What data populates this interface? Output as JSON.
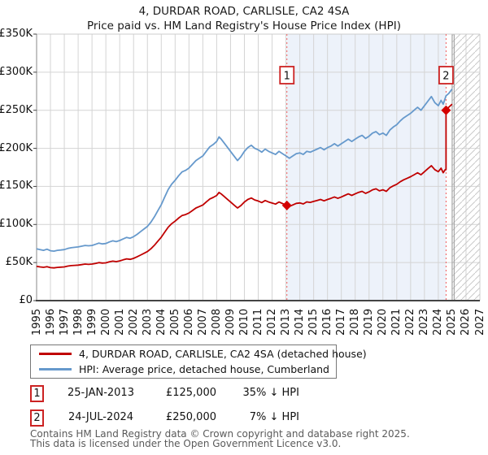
{
  "header": {
    "title": "4, DURDAR ROAD, CARLISLE, CA2 4SA",
    "subtitle": "Price paid vs. HM Land Registry's House Price Index (HPI)"
  },
  "chart_data": {
    "type": "line",
    "x_axis": {
      "min": 1995,
      "max": 2027,
      "tick_years": [
        1995,
        1996,
        1997,
        1998,
        1999,
        2000,
        2001,
        2002,
        2003,
        2004,
        2005,
        2006,
        2007,
        2008,
        2009,
        2010,
        2011,
        2012,
        2013,
        2014,
        2015,
        2016,
        2017,
        2018,
        2019,
        2020,
        2021,
        2022,
        2023,
        2024,
        2025,
        2026,
        2027
      ]
    },
    "y_axis": {
      "min_k": 0,
      "max_k": 350,
      "tick_step_k": 50,
      "tick_values_k": [
        0,
        50,
        100,
        150,
        200,
        250,
        300,
        350
      ],
      "tick_labels": [
        "£0",
        "£50K",
        "£100K",
        "£150K",
        "£200K",
        "£250K",
        "£300K",
        "£350K"
      ]
    },
    "grid": true,
    "band": {
      "from_year": 2013.07,
      "to_year": 2024.56,
      "color": "#edf2fa"
    },
    "future": {
      "from_year": 2025.0,
      "hatch_color": "#c9c9c9",
      "edge_color": "#a8a8a8"
    },
    "colors": {
      "grid": "#d4d4d4",
      "spine_light": "#cccccc",
      "spine_left": "#888888",
      "spine_bottom": "#444444",
      "dashed_line": "#f25c5c",
      "marker": "#d40000",
      "box_border": "#cc2222"
    },
    "series": [
      {
        "name": "HPI: Average price, detached house, Cumberland",
        "key": "hpi",
        "color": "#6699cc",
        "units": "GBP_thousands",
        "points": [
          [
            1995.0,
            68
          ],
          [
            1995.25,
            67
          ],
          [
            1995.5,
            66
          ],
          [
            1995.75,
            67.5
          ],
          [
            1996.0,
            65.5
          ],
          [
            1996.25,
            65
          ],
          [
            1996.5,
            66
          ],
          [
            1996.75,
            66.5
          ],
          [
            1997.0,
            67
          ],
          [
            1997.25,
            68.5
          ],
          [
            1997.5,
            69.5
          ],
          [
            1997.75,
            70
          ],
          [
            1998.0,
            70.5
          ],
          [
            1998.25,
            71.5
          ],
          [
            1998.5,
            72.5
          ],
          [
            1998.75,
            72
          ],
          [
            1999.0,
            72.5
          ],
          [
            1999.25,
            74
          ],
          [
            1999.5,
            75.5
          ],
          [
            1999.75,
            74.5
          ],
          [
            2000.0,
            75
          ],
          [
            2000.25,
            77
          ],
          [
            2000.5,
            78.5
          ],
          [
            2000.75,
            77.5
          ],
          [
            2001.0,
            79
          ],
          [
            2001.25,
            81
          ],
          [
            2001.5,
            83
          ],
          [
            2001.75,
            82
          ],
          [
            2002.0,
            84
          ],
          [
            2002.25,
            87
          ],
          [
            2002.5,
            90.5
          ],
          [
            2002.75,
            94
          ],
          [
            2003.0,
            97.5
          ],
          [
            2003.25,
            103
          ],
          [
            2003.5,
            110
          ],
          [
            2003.75,
            118
          ],
          [
            2004.0,
            126
          ],
          [
            2004.25,
            136
          ],
          [
            2004.5,
            146
          ],
          [
            2004.75,
            153
          ],
          [
            2005.0,
            158
          ],
          [
            2005.25,
            164
          ],
          [
            2005.5,
            169
          ],
          [
            2005.75,
            171
          ],
          [
            2006.0,
            174
          ],
          [
            2006.25,
            179
          ],
          [
            2006.5,
            184
          ],
          [
            2006.75,
            187
          ],
          [
            2007.0,
            190
          ],
          [
            2007.25,
            196
          ],
          [
            2007.5,
            202
          ],
          [
            2007.75,
            205
          ],
          [
            2008.0,
            209
          ],
          [
            2008.17,
            215
          ],
          [
            2008.33,
            212
          ],
          [
            2008.5,
            208
          ],
          [
            2008.75,
            202
          ],
          [
            2009.0,
            196
          ],
          [
            2009.25,
            190
          ],
          [
            2009.5,
            184
          ],
          [
            2009.75,
            189
          ],
          [
            2010.0,
            196
          ],
          [
            2010.25,
            201
          ],
          [
            2010.5,
            204
          ],
          [
            2010.75,
            200
          ],
          [
            2011.0,
            198
          ],
          [
            2011.25,
            195
          ],
          [
            2011.5,
            199
          ],
          [
            2011.75,
            196
          ],
          [
            2012.0,
            194
          ],
          [
            2012.25,
            192
          ],
          [
            2012.5,
            196
          ],
          [
            2012.75,
            193
          ],
          [
            2013.0,
            190
          ],
          [
            2013.25,
            187
          ],
          [
            2013.5,
            190
          ],
          [
            2013.75,
            193
          ],
          [
            2014.0,
            194
          ],
          [
            2014.25,
            192
          ],
          [
            2014.5,
            196
          ],
          [
            2014.75,
            195
          ],
          [
            2015.0,
            197
          ],
          [
            2015.25,
            199
          ],
          [
            2015.5,
            201
          ],
          [
            2015.75,
            198
          ],
          [
            2016.0,
            201
          ],
          [
            2016.25,
            203
          ],
          [
            2016.5,
            206
          ],
          [
            2016.75,
            203
          ],
          [
            2017.0,
            206
          ],
          [
            2017.25,
            209
          ],
          [
            2017.5,
            212
          ],
          [
            2017.75,
            209
          ],
          [
            2018.0,
            212
          ],
          [
            2018.25,
            215
          ],
          [
            2018.5,
            217
          ],
          [
            2018.75,
            213
          ],
          [
            2019.0,
            216
          ],
          [
            2019.25,
            220
          ],
          [
            2019.5,
            222
          ],
          [
            2019.75,
            218
          ],
          [
            2020.0,
            220
          ],
          [
            2020.25,
            217
          ],
          [
            2020.5,
            224
          ],
          [
            2020.75,
            228
          ],
          [
            2021.0,
            231
          ],
          [
            2021.25,
            236
          ],
          [
            2021.5,
            240
          ],
          [
            2021.75,
            243
          ],
          [
            2022.0,
            246
          ],
          [
            2022.25,
            250
          ],
          [
            2022.5,
            254
          ],
          [
            2022.75,
            250
          ],
          [
            2023.0,
            256
          ],
          [
            2023.25,
            262
          ],
          [
            2023.5,
            268
          ],
          [
            2023.75,
            260
          ],
          [
            2024.0,
            256
          ],
          [
            2024.2,
            263
          ],
          [
            2024.35,
            258
          ],
          [
            2024.56,
            269
          ],
          [
            2024.75,
            272
          ],
          [
            2025.0,
            278
          ]
        ]
      },
      {
        "name": "4, DURDAR ROAD, CARLISLE, CA2 4SA (detached house)",
        "key": "price_paid",
        "color": "#c00000",
        "units": "GBP_thousands",
        "points": [
          [
            1995.0,
            45
          ],
          [
            1995.25,
            44.3
          ],
          [
            1995.5,
            43.7
          ],
          [
            1995.75,
            44.6
          ],
          [
            1996.0,
            43.3
          ],
          [
            1996.25,
            43
          ],
          [
            1996.5,
            43.6
          ],
          [
            1996.75,
            44
          ],
          [
            1997.0,
            44.3
          ],
          [
            1997.25,
            45.3
          ],
          [
            1997.5,
            46
          ],
          [
            1997.75,
            46.3
          ],
          [
            1998.0,
            46.6
          ],
          [
            1998.25,
            47.3
          ],
          [
            1998.5,
            48
          ],
          [
            1998.75,
            47.6
          ],
          [
            1999.0,
            48
          ],
          [
            1999.25,
            48.9
          ],
          [
            1999.5,
            49.9
          ],
          [
            1999.75,
            49.3
          ],
          [
            2000.0,
            49.6
          ],
          [
            2000.25,
            50.9
          ],
          [
            2000.5,
            51.9
          ],
          [
            2000.75,
            51.2
          ],
          [
            2001.0,
            52.2
          ],
          [
            2001.25,
            53.6
          ],
          [
            2001.5,
            54.9
          ],
          [
            2001.75,
            54.2
          ],
          [
            2002.0,
            55.5
          ],
          [
            2002.25,
            57.5
          ],
          [
            2002.5,
            59.8
          ],
          [
            2002.75,
            62.1
          ],
          [
            2003.0,
            64.4
          ],
          [
            2003.25,
            68.1
          ],
          [
            2003.5,
            72.7
          ],
          [
            2003.75,
            78
          ],
          [
            2004.0,
            83.3
          ],
          [
            2004.25,
            89.9
          ],
          [
            2004.5,
            96.5
          ],
          [
            2004.75,
            101.1
          ],
          [
            2005.0,
            104.4
          ],
          [
            2005.25,
            108.4
          ],
          [
            2005.5,
            111.7
          ],
          [
            2005.75,
            113
          ],
          [
            2006.0,
            115
          ],
          [
            2006.25,
            118.3
          ],
          [
            2006.5,
            121.6
          ],
          [
            2006.75,
            123.6
          ],
          [
            2007.0,
            125.6
          ],
          [
            2007.25,
            129.5
          ],
          [
            2007.5,
            133.5
          ],
          [
            2007.75,
            135.5
          ],
          [
            2008.0,
            138.1
          ],
          [
            2008.17,
            142.1
          ],
          [
            2008.33,
            140.1
          ],
          [
            2008.5,
            137.4
          ],
          [
            2008.75,
            133.5
          ],
          [
            2009.0,
            129.5
          ],
          [
            2009.25,
            125.6
          ],
          [
            2009.5,
            121.6
          ],
          [
            2009.75,
            124.9
          ],
          [
            2010.0,
            129.5
          ],
          [
            2010.25,
            132.8
          ],
          [
            2010.5,
            134.8
          ],
          [
            2010.75,
            132.2
          ],
          [
            2011.0,
            130.8
          ],
          [
            2011.25,
            128.8
          ],
          [
            2011.5,
            131.5
          ],
          [
            2011.75,
            129.5
          ],
          [
            2012.0,
            128.2
          ],
          [
            2012.25,
            126.8
          ],
          [
            2012.5,
            129.5
          ],
          [
            2012.75,
            127.5
          ],
          [
            2013.07,
            125
          ],
          [
            2013.25,
            123.7
          ],
          [
            2013.5,
            125.7
          ],
          [
            2013.75,
            127.7
          ],
          [
            2014.0,
            128.3
          ],
          [
            2014.25,
            127
          ],
          [
            2014.5,
            129.6
          ],
          [
            2014.75,
            129
          ],
          [
            2015.0,
            130.3
          ],
          [
            2015.25,
            131.6
          ],
          [
            2015.5,
            132.9
          ],
          [
            2015.75,
            131
          ],
          [
            2016.0,
            132.9
          ],
          [
            2016.25,
            134.3
          ],
          [
            2016.5,
            136.2
          ],
          [
            2016.75,
            134.3
          ],
          [
            2017.0,
            136.2
          ],
          [
            2017.25,
            138.2
          ],
          [
            2017.5,
            140.2
          ],
          [
            2017.75,
            138.2
          ],
          [
            2018.0,
            140.2
          ],
          [
            2018.25,
            142.2
          ],
          [
            2018.5,
            143.5
          ],
          [
            2018.75,
            140.9
          ],
          [
            2019.0,
            142.9
          ],
          [
            2019.25,
            145.5
          ],
          [
            2019.5,
            146.8
          ],
          [
            2019.75,
            144.2
          ],
          [
            2020.0,
            145.5
          ],
          [
            2020.25,
            143.5
          ],
          [
            2020.5,
            148.2
          ],
          [
            2020.75,
            150.8
          ],
          [
            2021.0,
            152.8
          ],
          [
            2021.25,
            156.1
          ],
          [
            2021.5,
            158.7
          ],
          [
            2021.75,
            160.7
          ],
          [
            2022.0,
            162.7
          ],
          [
            2022.25,
            165.3
          ],
          [
            2022.5,
            168
          ],
          [
            2022.75,
            165.3
          ],
          [
            2023.0,
            169.3
          ],
          [
            2023.25,
            173.3
          ],
          [
            2023.5,
            177.2
          ],
          [
            2023.75,
            172
          ],
          [
            2024.0,
            169.3
          ],
          [
            2024.2,
            173.9
          ],
          [
            2024.35,
            168
          ],
          [
            2024.5,
            172
          ],
          [
            2024.56,
            172
          ],
          [
            2024.56,
            250
          ],
          [
            2024.75,
            254
          ],
          [
            2025.0,
            258
          ]
        ]
      }
    ],
    "sale_markers": [
      {
        "num": "1",
        "year": 2013.07,
        "value_k": 125
      },
      {
        "num": "2",
        "year": 2024.56,
        "value_k": 250
      }
    ]
  },
  "legend": {
    "items": [
      {
        "label": "4, DURDAR ROAD, CARLISLE, CA2 4SA (detached house)",
        "color": "#c00000"
      },
      {
        "label": "HPI: Average price, detached house, Cumberland",
        "color": "#6699cc"
      }
    ]
  },
  "sales": {
    "rows": [
      {
        "num": "1",
        "date": "25-JAN-2013",
        "price": "£125,000",
        "hpi_diff": "35% ↓ HPI"
      },
      {
        "num": "2",
        "date": "24-JUL-2024",
        "price": "£250,000",
        "hpi_diff": "7% ↓ HPI"
      }
    ]
  },
  "footer": {
    "line1": "Contains HM Land Registry data © Crown copyright and database right 2025.",
    "line2": "This data is licensed under the Open Government Licence v3.0."
  }
}
